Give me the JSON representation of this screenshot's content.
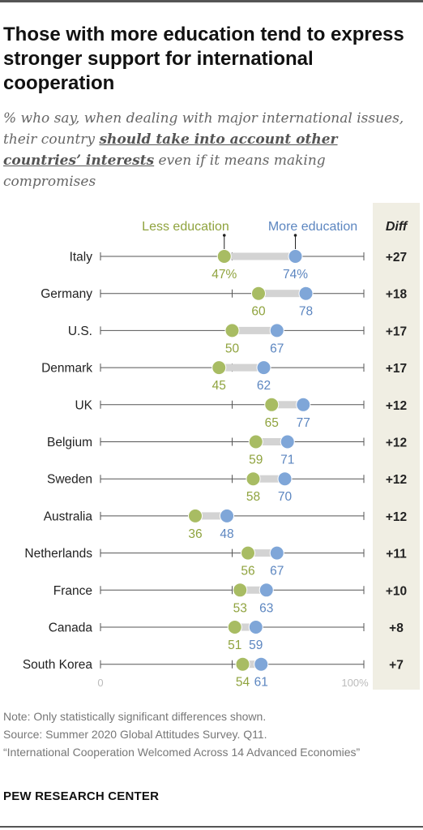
{
  "title": "Those with more education tend to express stronger support for international cooperation",
  "subtitle": {
    "before": "% who say, when dealing with major international issues, their country ",
    "emphasis": "should take into account other countries’ interests",
    "after": " even if it means making compromises"
  },
  "legend": {
    "less": "Less education",
    "more": "More education",
    "diff_header": "Diff"
  },
  "colors": {
    "less": "#A8BC63",
    "more": "#7FA6D8",
    "less_text": "#8FA33E",
    "more_text": "#5C86C0",
    "bar": "#D3D3D3",
    "diff_bg": "#F0EEE3"
  },
  "chart_data": {
    "type": "dot-plot",
    "xlim": [
      0,
      100
    ],
    "x_tick_labels": [
      "0",
      "100%"
    ],
    "series": [
      {
        "name": "Less education",
        "values": [
          47,
          60,
          50,
          45,
          65,
          59,
          58,
          36,
          56,
          53,
          51,
          54
        ]
      },
      {
        "name": "More education",
        "values": [
          74,
          78,
          67,
          62,
          77,
          71,
          70,
          48,
          67,
          63,
          59,
          61
        ]
      }
    ],
    "categories": [
      "Italy",
      "Germany",
      "U.S.",
      "Denmark",
      "UK",
      "Belgium",
      "Sweden",
      "Australia",
      "Netherlands",
      "France",
      "Canada",
      "South Korea"
    ],
    "diff": [
      "+27",
      "+18",
      "+17",
      "+17",
      "+12",
      "+12",
      "+12",
      "+12",
      "+11",
      "+10",
      "+8",
      "+7"
    ],
    "first_row_labels": {
      "less": "47%",
      "more": "74%"
    }
  },
  "notes": [
    "Note: Only statistically significant differences shown.",
    "Source: Summer 2020 Global Attitudes Survey. Q11.",
    "“International Cooperation Welcomed Across 14 Advanced Economies”"
  ],
  "brand": "PEW RESEARCH CENTER"
}
